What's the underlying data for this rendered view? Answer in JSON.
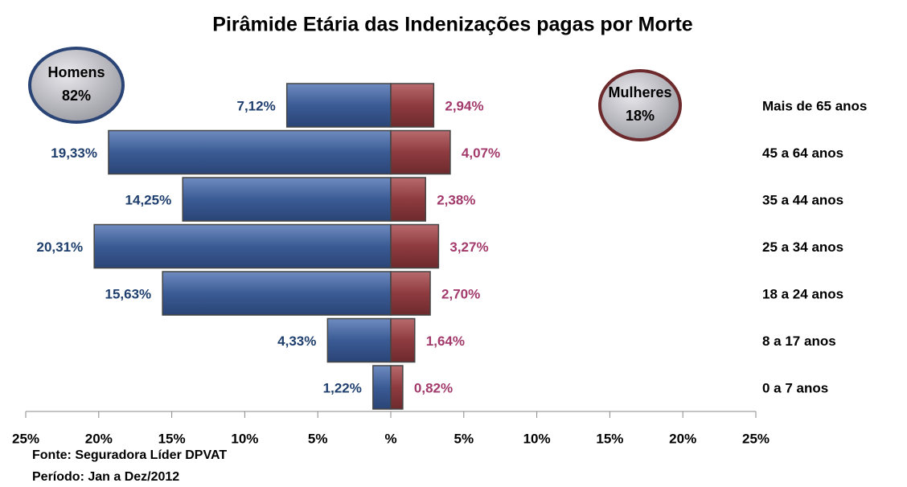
{
  "chart_data": {
    "type": "pyramid",
    "title": "Pirâmide Etária das Indenizações pagas por Morte",
    "categories": [
      "Mais de 65 anos",
      "45 a 64 anos",
      "35 a 44 anos",
      "25 a 34 anos",
      "18 a 24 anos",
      "8 a 17 anos",
      "0 a 7 anos"
    ],
    "series": [
      {
        "name": "Homens",
        "color": "#3b5b95",
        "label_color": "#1f3f6e",
        "values": [
          7.12,
          19.33,
          14.25,
          20.31,
          15.63,
          4.33,
          1.22
        ],
        "value_labels": [
          "7,12%",
          "19,33%",
          "14,25%",
          "20,31%",
          "15,63%",
          "4,33%",
          "1,22%"
        ],
        "total": 82,
        "total_label": "82%"
      },
      {
        "name": "Mulheres",
        "color": "#8e3b3f",
        "label_color": "#a33a6c",
        "values": [
          2.94,
          4.07,
          2.38,
          3.27,
          2.7,
          1.64,
          0.82
        ],
        "value_labels": [
          "2,94%",
          "4,07%",
          "2,38%",
          "3,27%",
          "2,70%",
          "1,64%",
          "0,82%"
        ],
        "total": 18,
        "total_label": "18%"
      }
    ],
    "xlim": [
      -25,
      25
    ],
    "xticks": [
      {
        "value": -25,
        "label": "25%"
      },
      {
        "value": -20,
        "label": "20%"
      },
      {
        "value": -15,
        "label": "15%"
      },
      {
        "value": -10,
        "label": "10%"
      },
      {
        "value": -5,
        "label": "5%"
      },
      {
        "value": 0,
        "label": "%"
      },
      {
        "value": 5,
        "label": "5%"
      },
      {
        "value": 10,
        "label": "10%"
      },
      {
        "value": 15,
        "label": "15%"
      },
      {
        "value": 20,
        "label": "20%"
      },
      {
        "value": 25,
        "label": "25%"
      }
    ],
    "notes": [
      "Fonte: Seguradora Líder DPVAT",
      "Período: Jan a Dez/2012"
    ]
  }
}
